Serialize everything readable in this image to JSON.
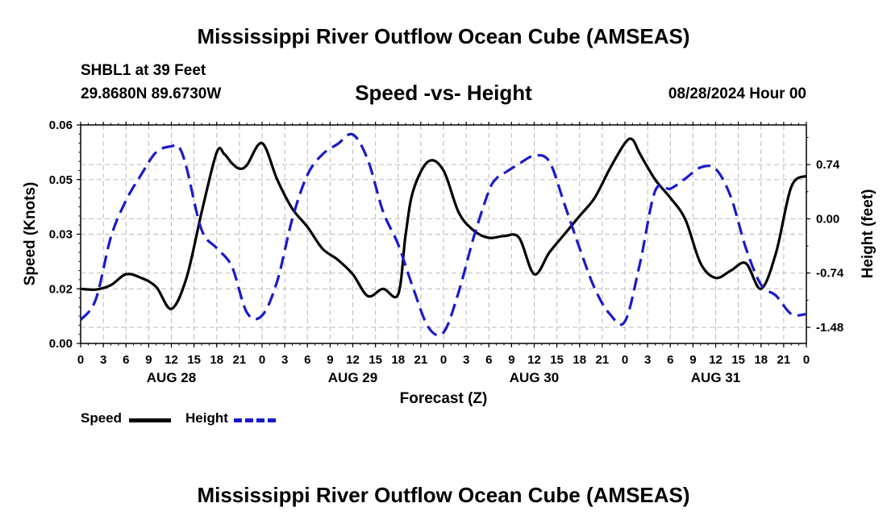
{
  "header": {
    "title": "Mississippi River Outflow Ocean Cube (AMSEAS)",
    "station": "SHBL1 at 39 Feet",
    "coords": "29.8680N  89.6730W",
    "subtitle": "Speed -vs- Height",
    "datetime": "08/28/2024 Hour 00"
  },
  "footer": {
    "title": "Mississippi River Outflow Ocean Cube (AMSEAS)"
  },
  "legend": {
    "speed_label": "Speed",
    "height_label": "Height"
  },
  "colors": {
    "speed": "#000000",
    "height": "#1a1acc",
    "grid": "#bbbbbb"
  },
  "chart_data": {
    "type": "line",
    "title": "Speed -vs- Height",
    "xlabel": "Forecast (Z)",
    "ylabel": "Speed (Knots)",
    "y2label": "Height (feet)",
    "xlim": [
      0,
      96
    ],
    "ylim": [
      0.0,
      0.06
    ],
    "y2lim": [
      -1.7,
      1.28
    ],
    "left_ticks": [
      "0.00",
      "0.02",
      "0.03",
      "0.05",
      "0.06"
    ],
    "left_tick_values": [
      0.0,
      0.015,
      0.03,
      0.045,
      0.06
    ],
    "right_ticks": [
      "0.74",
      "0.00",
      "-0.74",
      "-1.48"
    ],
    "right_tick_values": [
      0.74,
      0.0,
      -0.74,
      -1.48
    ],
    "x_tick_labels": [
      "0",
      "3",
      "6",
      "9",
      "12",
      "15",
      "18",
      "21",
      "0",
      "3",
      "6",
      "9",
      "12",
      "15",
      "18",
      "21",
      "0",
      "3",
      "6",
      "9",
      "12",
      "15",
      "18",
      "21",
      "0",
      "3",
      "6",
      "9",
      "12",
      "15",
      "18",
      "21",
      "0"
    ],
    "day_labels": [
      {
        "label": "AUG 28",
        "hour": 12
      },
      {
        "label": "AUG 29",
        "hour": 36
      },
      {
        "label": "AUG 30",
        "hour": 60
      },
      {
        "label": "AUG 31",
        "hour": 84
      }
    ],
    "series": [
      {
        "name": "Speed",
        "axis": "left",
        "style": "solid",
        "x": [
          0,
          2,
          4,
          6,
          8,
          10,
          12,
          14,
          16,
          18,
          19,
          20,
          21,
          22,
          24,
          26,
          28,
          30,
          32,
          34,
          36,
          38,
          40,
          42,
          43,
          44,
          46,
          48,
          50,
          52,
          54,
          56,
          58,
          60,
          62,
          64,
          66,
          68,
          70,
          72,
          73,
          74,
          76,
          78,
          80,
          82,
          84,
          86,
          88,
          90,
          92,
          94,
          96
        ],
        "values": [
          0.015,
          0.0148,
          0.016,
          0.019,
          0.018,
          0.0155,
          0.0095,
          0.018,
          0.036,
          0.0525,
          0.052,
          0.0495,
          0.048,
          0.049,
          0.055,
          0.045,
          0.037,
          0.032,
          0.026,
          0.023,
          0.019,
          0.013,
          0.015,
          0.0135,
          0.03,
          0.042,
          0.05,
          0.0475,
          0.036,
          0.031,
          0.029,
          0.0295,
          0.029,
          0.019,
          0.025,
          0.03,
          0.035,
          0.04,
          0.048,
          0.055,
          0.056,
          0.052,
          0.045,
          0.04,
          0.034,
          0.022,
          0.018,
          0.02,
          0.022,
          0.015,
          0.025,
          0.043,
          0.046
        ]
      },
      {
        "name": "Height",
        "axis": "right",
        "style": "dashed",
        "x": [
          0,
          2,
          4,
          6,
          8,
          10,
          12,
          13,
          14,
          16,
          18,
          20,
          22,
          24,
          26,
          28,
          30,
          32,
          34,
          36,
          38,
          40,
          42,
          44,
          46,
          48,
          50,
          52,
          54,
          55,
          56,
          58,
          60,
          62,
          64,
          66,
          68,
          70,
          72,
          74,
          76,
          78,
          80,
          82,
          84,
          86,
          88,
          90,
          92,
          94,
          96
        ],
        "values": [
          -1.38,
          -1.1,
          -0.25,
          0.25,
          0.6,
          0.91,
          0.99,
          0.98,
          0.7,
          -0.15,
          -0.4,
          -0.65,
          -1.28,
          -1.32,
          -0.85,
          0.0,
          0.6,
          0.88,
          1.02,
          1.15,
          0.8,
          0.1,
          -0.35,
          -0.95,
          -1.48,
          -1.55,
          -1.0,
          -0.25,
          0.38,
          0.55,
          0.62,
          0.75,
          0.86,
          0.78,
          0.2,
          -0.4,
          -0.95,
          -1.3,
          -1.4,
          -0.6,
          0.38,
          0.41,
          0.55,
          0.7,
          0.68,
          0.3,
          -0.4,
          -0.9,
          -1.05,
          -1.3,
          -1.3
        ]
      }
    ]
  }
}
